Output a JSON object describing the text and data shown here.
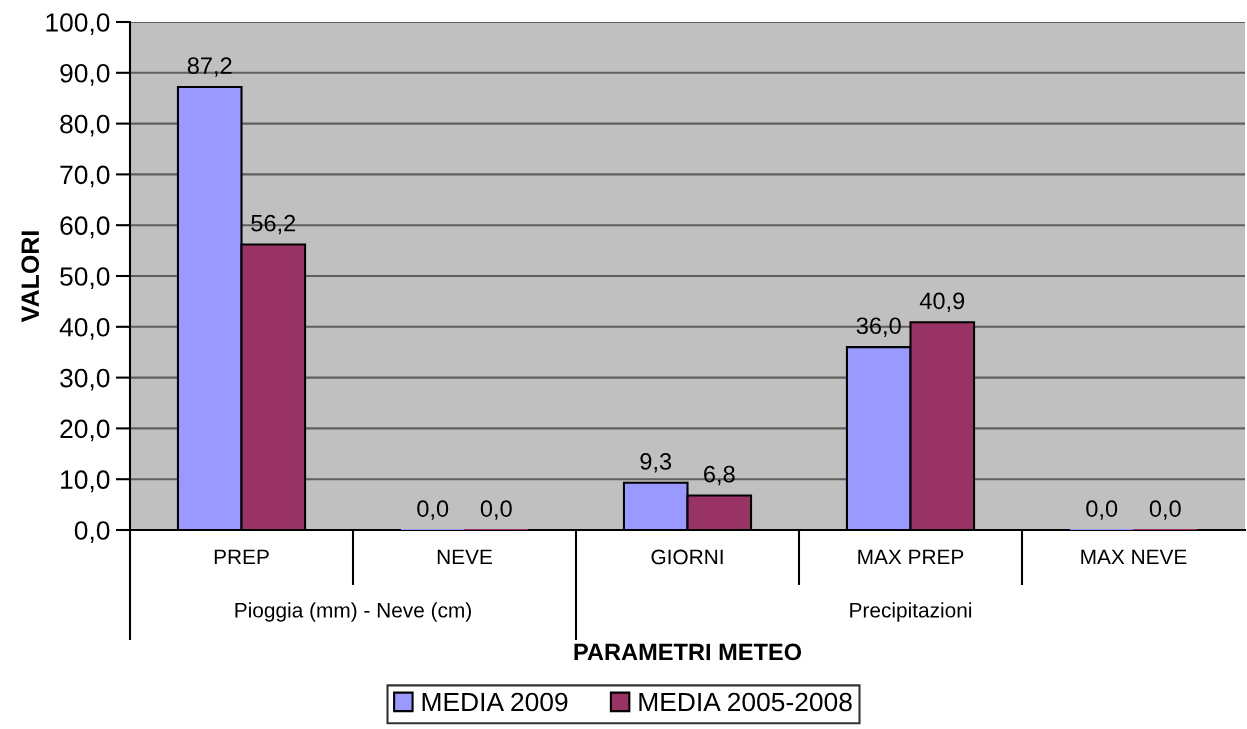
{
  "chart_data": {
    "type": "bar",
    "xlabel": "PARAMETRI METEO",
    "ylabel": "VALORI",
    "categories": [
      "PREP",
      "NEVE",
      "GIORNI",
      "MAX PREP",
      "MAX NEVE"
    ],
    "series": [
      {
        "name": "MEDIA 2009",
        "color": "#9999ff",
        "values": [
          87.2,
          0.0,
          9.3,
          36.0,
          0.0
        ],
        "value_labels": [
          "87,2",
          "0,0",
          "9,3",
          "36,0",
          "0,0"
        ]
      },
      {
        "name": "MEDIA 2005-2008",
        "color": "#993366",
        "values": [
          56.2,
          0.0,
          6.8,
          40.9,
          0.0
        ],
        "value_labels": [
          "56,2",
          "0,0",
          "6,8",
          "40,9",
          "0,0"
        ]
      }
    ],
    "ylim": [
      0,
      100
    ],
    "yticks": [
      {
        "value": 0,
        "label": "0,0"
      },
      {
        "value": 10,
        "label": "10,0"
      },
      {
        "value": 20,
        "label": "20,0"
      },
      {
        "value": 30,
        "label": "30,0"
      },
      {
        "value": 40,
        "label": "40,0"
      },
      {
        "value": 50,
        "label": "50,0"
      },
      {
        "value": 60,
        "label": "60,0"
      },
      {
        "value": 70,
        "label": "70,0"
      },
      {
        "value": 80,
        "label": "80,0"
      },
      {
        "value": 90,
        "label": "90,0"
      },
      {
        "value": 100,
        "label": "100,0"
      }
    ],
    "grid": "y",
    "legend": "bottom",
    "annotations": [
      "Pioggia (mm) - Neve (cm)",
      "Precipitazioni"
    ]
  }
}
